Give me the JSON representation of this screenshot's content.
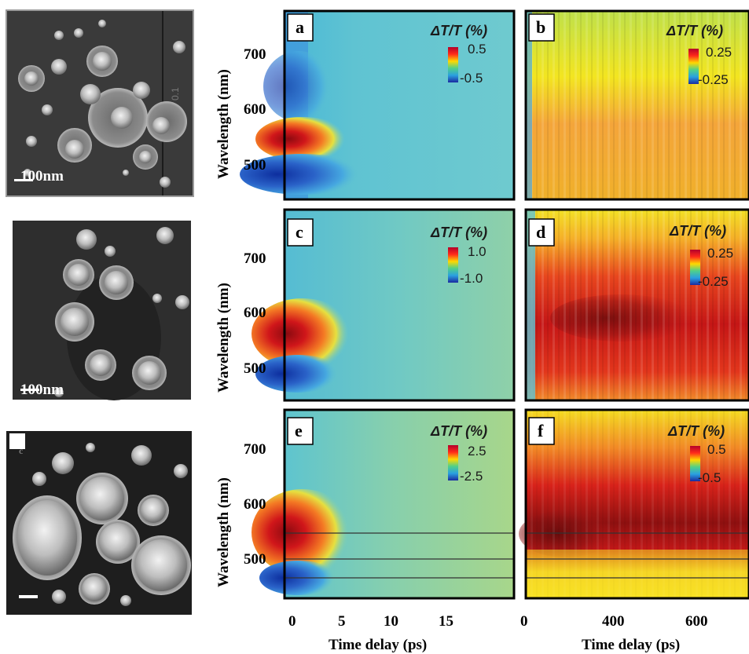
{
  "figure": {
    "tem_images": [
      {
        "scale_label": "100nm"
      },
      {
        "scale_label": "100nm"
      },
      {
        "scale_label": "",
        "corner_label": "c"
      }
    ],
    "tem_sizes": [
      "0.1"
    ],
    "axis": {
      "ylabel": "Wavelength (nm)",
      "xlabel_left": "Time delay (ps)",
      "xlabel_right": "Time delay (ps)",
      "yticks": [
        "700",
        "600",
        "500"
      ],
      "xticks_left": [
        "0",
        "5",
        "10",
        "15"
      ],
      "xticks_right": [
        "0",
        "400",
        "600"
      ]
    },
    "colorbar_title": "ΔT/T (%)",
    "panels": [
      {
        "label": "a",
        "cb_max": "0.5",
        "cb_min": "-0.5"
      },
      {
        "label": "b",
        "cb_max": "0.25",
        "cb_min": "-0.25"
      },
      {
        "label": "c",
        "cb_max": "1.0",
        "cb_min": "-1.0"
      },
      {
        "label": "d",
        "cb_max": "0.25",
        "cb_min": "-0.25"
      },
      {
        "label": "e",
        "cb_max": "2.5",
        "cb_min": "-2.5"
      },
      {
        "label": "f",
        "cb_max": "0.5",
        "cb_min": "-0.5"
      }
    ],
    "colors": {
      "background_cyan": "#5fc2cf",
      "red": "#d7261e",
      "blue": "#1f4fb6",
      "yellow": "#f4e21a",
      "dark_red": "#6e1010"
    }
  }
}
